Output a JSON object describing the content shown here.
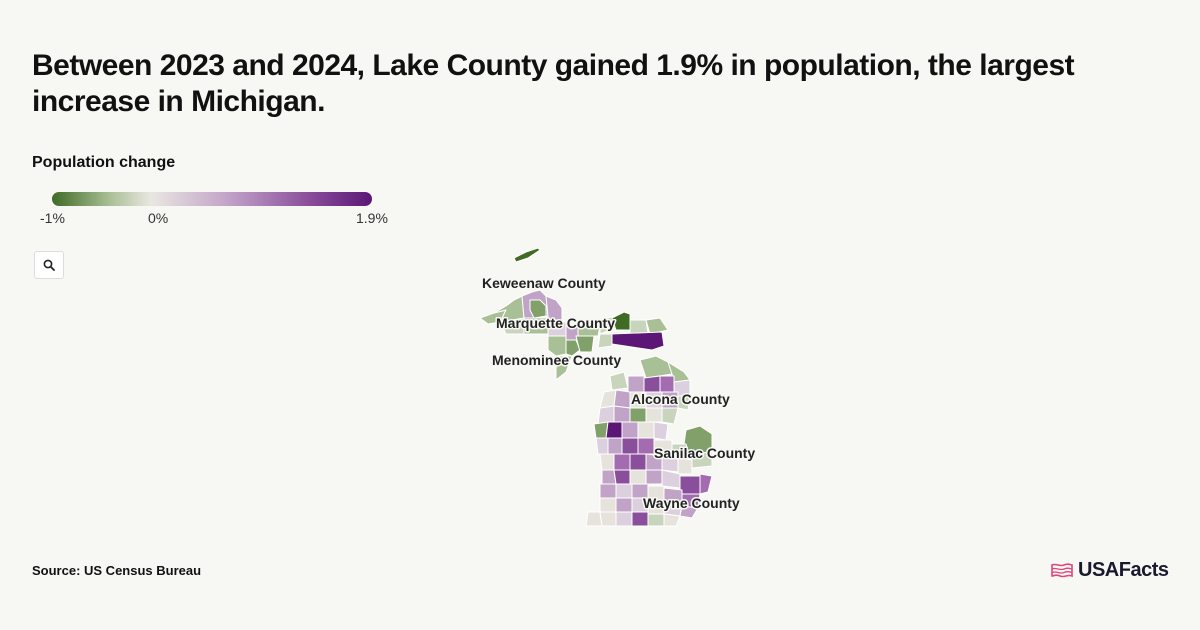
{
  "header": {
    "title": "Between 2023 and 2024, Lake County gained 1.9% in population, the largest increase in Michigan."
  },
  "legend": {
    "title": "Population change",
    "min_label": "-1%",
    "mid_label": "0%",
    "max_label": "1.9%",
    "colors": [
      "#3f6b25",
      "#a9bf95",
      "#e9e7e1",
      "#c2a3c8",
      "#8a4f9b",
      "#5b1676"
    ]
  },
  "toolbar": {
    "zoom_icon": "search-icon"
  },
  "map": {
    "state": "Michigan",
    "callouts": [
      {
        "name": "Keweenaw County"
      },
      {
        "name": "Marquette County"
      },
      {
        "name": "Menominee County"
      },
      {
        "name": "Alcona County"
      },
      {
        "name": "Sanilac County"
      },
      {
        "name": "Wayne County"
      }
    ]
  },
  "footer": {
    "source": "Source: US Census Bureau",
    "brand": "USAFacts",
    "brand_icon": "usa-flag-icon"
  }
}
